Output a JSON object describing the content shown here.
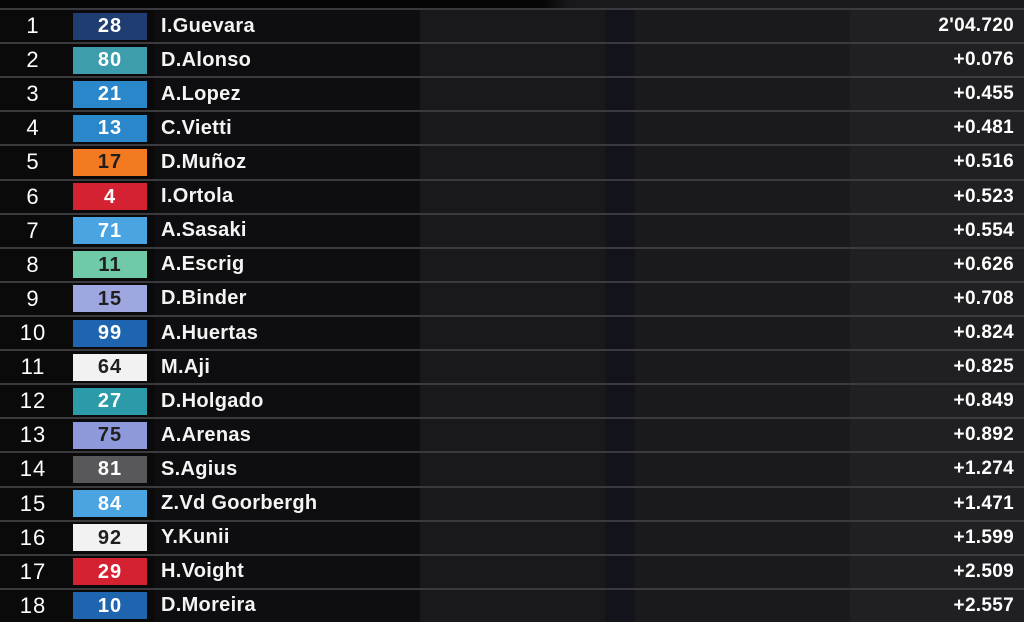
{
  "table": {
    "leader_time": "2'04.720",
    "rows": [
      {
        "pos": "1",
        "num": "28",
        "num_bg": "#203d72",
        "num_fg": "#ffffff",
        "name": "I.Guevara",
        "time": "2'04.720"
      },
      {
        "pos": "2",
        "num": "80",
        "num_bg": "#3d9dad",
        "num_fg": "#ffffff",
        "name": "D.Alonso",
        "time": "+0.076"
      },
      {
        "pos": "3",
        "num": "21",
        "num_bg": "#2a87c9",
        "num_fg": "#ffffff",
        "name": "A.Lopez",
        "time": "+0.455"
      },
      {
        "pos": "4",
        "num": "13",
        "num_bg": "#2a87c9",
        "num_fg": "#ffffff",
        "name": "C.Vietti",
        "time": "+0.481"
      },
      {
        "pos": "5",
        "num": "17",
        "num_bg": "#f47a21",
        "num_fg": "#1f1f1f",
        "name": "D.Muñoz",
        "time": "+0.516"
      },
      {
        "pos": "6",
        "num": "4",
        "num_bg": "#d52232",
        "num_fg": "#ffffff",
        "name": "I.Ortola",
        "time": "+0.523"
      },
      {
        "pos": "7",
        "num": "71",
        "num_bg": "#4ba4e2",
        "num_fg": "#ffffff",
        "name": "A.Sasaki",
        "time": "+0.554"
      },
      {
        "pos": "8",
        "num": "11",
        "num_bg": "#70c9a7",
        "num_fg": "#1f1f1f",
        "name": "A.Escrig",
        "time": "+0.626"
      },
      {
        "pos": "9",
        "num": "15",
        "num_bg": "#9ea7e0",
        "num_fg": "#1f1f1f",
        "name": "D.Binder",
        "time": "+0.708"
      },
      {
        "pos": "10",
        "num": "99",
        "num_bg": "#1e64ae",
        "num_fg": "#ffffff",
        "name": "A.Huertas",
        "time": "+0.824"
      },
      {
        "pos": "11",
        "num": "64",
        "num_bg": "#f2f2f2",
        "num_fg": "#1f1f1f",
        "name": "M.Aji",
        "time": "+0.825"
      },
      {
        "pos": "12",
        "num": "27",
        "num_bg": "#2b9aa9",
        "num_fg": "#ffffff",
        "name": "D.Holgado",
        "time": "+0.849"
      },
      {
        "pos": "13",
        "num": "75",
        "num_bg": "#8d99da",
        "num_fg": "#1f1f1f",
        "name": "A.Arenas",
        "time": "+0.892"
      },
      {
        "pos": "14",
        "num": "81",
        "num_bg": "#58585a",
        "num_fg": "#ffffff",
        "name": "S.Agius",
        "time": "+1.274"
      },
      {
        "pos": "15",
        "num": "84",
        "num_bg": "#4ba4e2",
        "num_fg": "#ffffff",
        "name": "Z.Vd Goorbergh",
        "time": "+1.471"
      },
      {
        "pos": "16",
        "num": "92",
        "num_bg": "#f2f2f2",
        "num_fg": "#1f1f1f",
        "name": "Y.Kunii",
        "time": "+1.599"
      },
      {
        "pos": "17",
        "num": "29",
        "num_bg": "#d52232",
        "num_fg": "#ffffff",
        "name": "H.Voight",
        "time": "+2.509"
      },
      {
        "pos": "18",
        "num": "10",
        "num_bg": "#1e64ae",
        "num_fg": "#ffffff",
        "name": "D.Moreira",
        "time": "+2.557"
      }
    ]
  },
  "colors": {
    "row_separator": "#3a3a3f",
    "background_left_band": "#0a0a0b",
    "background_name_band": "#0e0e10",
    "background_mid_band": "#19191b",
    "background_navy_band": "#13131b",
    "background_right_band": "#202023",
    "text": "#ffffff"
  }
}
